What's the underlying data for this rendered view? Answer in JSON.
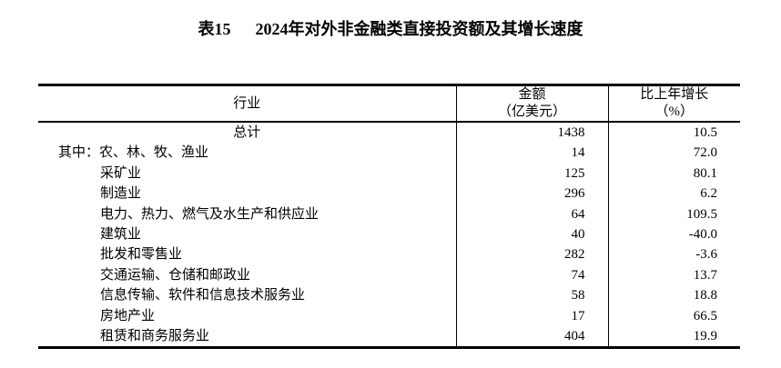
{
  "page": {
    "background_color": "#ffffff",
    "text_color": "#000000"
  },
  "title": {
    "label": "表15",
    "text": "2024年对外非金融类直接投资额及其增长速度"
  },
  "table": {
    "columns": [
      {
        "title": "行业",
        "subtitle": ""
      },
      {
        "title": "金额",
        "subtitle": "（亿美元）"
      },
      {
        "title": "比上年增长",
        "subtitle": "（%）"
      }
    ],
    "rows": [
      {
        "industry": "总计",
        "amount": "1438",
        "growth": "10.5",
        "indent": "center"
      },
      {
        "industry": "其中：农、林、牧、渔业",
        "amount": "14",
        "growth": "72.0",
        "indent": "first"
      },
      {
        "industry": "采矿业",
        "amount": "125",
        "growth": "80.1",
        "indent": "sub"
      },
      {
        "industry": "制造业",
        "amount": "296",
        "growth": "6.2",
        "indent": "sub"
      },
      {
        "industry": "电力、热力、燃气及水生产和供应业",
        "amount": "64",
        "growth": "109.5",
        "indent": "sub"
      },
      {
        "industry": "建筑业",
        "amount": "40",
        "growth": "-40.0",
        "indent": "sub"
      },
      {
        "industry": "批发和零售业",
        "amount": "282",
        "growth": "-3.6",
        "indent": "sub"
      },
      {
        "industry": "交通运输、仓储和邮政业",
        "amount": "74",
        "growth": "13.7",
        "indent": "sub"
      },
      {
        "industry": "信息传输、软件和信息技术服务业",
        "amount": "58",
        "growth": "18.8",
        "indent": "sub"
      },
      {
        "industry": "房地产业",
        "amount": "17",
        "growth": "66.5",
        "indent": "sub"
      },
      {
        "industry": "租赁和商务服务业",
        "amount": "404",
        "growth": "19.9",
        "indent": "sub"
      }
    ]
  }
}
